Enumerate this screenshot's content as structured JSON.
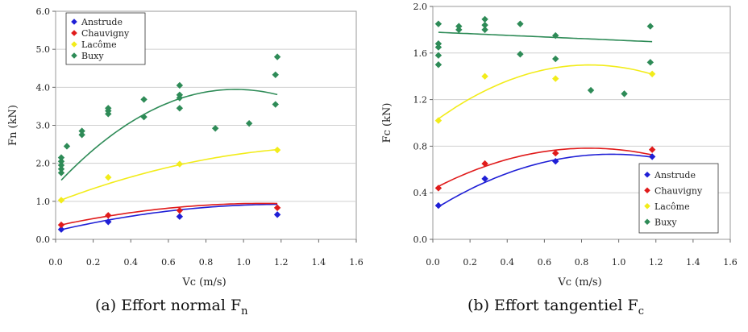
{
  "captions": [
    {
      "prefix": "(a) Effort normal F",
      "sub": "n"
    },
    {
      "prefix": "(b) Effort tangentiel F",
      "sub": "c"
    }
  ],
  "chart_data": [
    {
      "type": "scatter",
      "xlabel": "Vc (m/s)",
      "ylabel": "Fn (kN)",
      "xlim": [
        0,
        1.6
      ],
      "ylim": [
        0,
        6.0
      ],
      "xticks": [
        "0.0",
        "0.2",
        "0.4",
        "0.6",
        "0.8",
        "1.0",
        "1.2",
        "1.4",
        "1.6"
      ],
      "yticks": [
        "0.0",
        "1.0",
        "2.0",
        "3.0",
        "4.0",
        "5.0",
        "6.0"
      ],
      "grid": true,
      "legend_position": "top-left",
      "series": [
        {
          "name": "Anstrude",
          "color": "#1f1fd6",
          "points": [
            [
              0.03,
              0.26
            ],
            [
              0.28,
              0.46
            ],
            [
              0.66,
              0.6
            ],
            [
              1.18,
              0.65
            ]
          ],
          "fit": [
            -0.48,
            1.16,
            0.22
          ]
        },
        {
          "name": "Chauvigny",
          "color": "#e01b1b",
          "points": [
            [
              0.03,
              0.38
            ],
            [
              0.28,
              0.63
            ],
            [
              0.66,
              0.76
            ],
            [
              1.18,
              0.83
            ]
          ],
          "fit": [
            -0.48,
            1.07,
            0.35
          ]
        },
        {
          "name": "Lacôme",
          "color": "#f2ec1a",
          "points": [
            [
              0.03,
              1.03
            ],
            [
              0.28,
              1.63
            ],
            [
              0.66,
              1.98
            ],
            [
              1.18,
              2.35
            ]
          ],
          "fit": [
            -0.61,
            1.89,
            0.98
          ]
        },
        {
          "name": "Buxy",
          "color": "#2e8b57",
          "points": [
            [
              0.03,
              1.75
            ],
            [
              0.03,
              1.85
            ],
            [
              0.03,
              1.95
            ],
            [
              0.03,
              2.05
            ],
            [
              0.03,
              2.15
            ],
            [
              0.06,
              2.45
            ],
            [
              0.14,
              2.75
            ],
            [
              0.14,
              2.85
            ],
            [
              0.28,
              3.3
            ],
            [
              0.28,
              3.38
            ],
            [
              0.28,
              3.45
            ],
            [
              0.47,
              3.22
            ],
            [
              0.47,
              3.68
            ],
            [
              0.66,
              3.45
            ],
            [
              0.66,
              3.72
            ],
            [
              0.66,
              3.8
            ],
            [
              0.66,
              4.05
            ],
            [
              0.85,
              2.92
            ],
            [
              1.03,
              3.05
            ],
            [
              1.17,
              3.55
            ],
            [
              1.17,
              4.33
            ],
            [
              1.18,
              4.8
            ]
          ],
          "fit": [
            -2.78,
            5.32,
            1.4
          ]
        }
      ]
    },
    {
      "type": "scatter",
      "xlabel": "Vc (m/s)",
      "ylabel": "Fc (kN)",
      "xlim": [
        0,
        1.6
      ],
      "ylim": [
        0,
        2.0
      ],
      "xticks": [
        "0.0",
        "0.2",
        "0.4",
        "0.6",
        "0.8",
        "1.0",
        "1.2",
        "1.4",
        "1.6"
      ],
      "yticks": [
        "0.0",
        "0.4",
        "0.8",
        "1.2",
        "1.6",
        "2.0"
      ],
      "grid": true,
      "legend_position": "bottom-right",
      "series": [
        {
          "name": "Anstrude",
          "color": "#1f1fd6",
          "points": [
            [
              0.03,
              0.29
            ],
            [
              0.28,
              0.52
            ],
            [
              0.66,
              0.67
            ],
            [
              1.18,
              0.71
            ]
          ],
          "fit": [
            -0.52,
            1.0,
            0.25
          ]
        },
        {
          "name": "Chauvigny",
          "color": "#e01b1b",
          "points": [
            [
              0.03,
              0.44
            ],
            [
              0.28,
              0.65
            ],
            [
              0.66,
              0.74
            ],
            [
              1.18,
              0.77
            ]
          ],
          "fit": [
            -0.5,
            0.84,
            0.43
          ]
        },
        {
          "name": "Lacôme",
          "color": "#f2ec1a",
          "points": [
            [
              0.03,
              1.02
            ],
            [
              0.28,
              1.4
            ],
            [
              0.66,
              1.38
            ],
            [
              1.18,
              1.42
            ]
          ],
          "fit": [
            -0.7,
            1.18,
            1.0
          ]
        },
        {
          "name": "Buxy",
          "color": "#2e8b57",
          "points": [
            [
              0.03,
              1.5
            ],
            [
              0.03,
              1.58
            ],
            [
              0.03,
              1.65
            ],
            [
              0.03,
              1.68
            ],
            [
              0.03,
              1.85
            ],
            [
              0.14,
              1.8
            ],
            [
              0.14,
              1.83
            ],
            [
              0.28,
              1.8
            ],
            [
              0.28,
              1.84
            ],
            [
              0.28,
              1.89
            ],
            [
              0.47,
              1.59
            ],
            [
              0.47,
              1.85
            ],
            [
              0.66,
              1.55
            ],
            [
              0.66,
              1.75
            ],
            [
              0.85,
              1.28
            ],
            [
              1.03,
              1.25
            ],
            [
              1.17,
              1.52
            ],
            [
              1.17,
              1.83
            ]
          ],
          "fit": [
            0.0,
            -0.07,
            1.78
          ]
        }
      ]
    }
  ]
}
